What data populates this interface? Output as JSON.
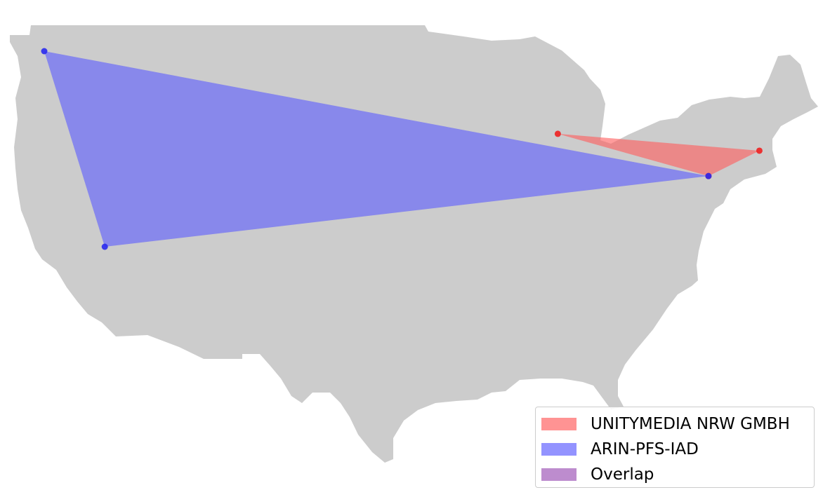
{
  "map": {
    "land_color": "#cccccc",
    "background_color": "#ffffff"
  },
  "regions": [
    {
      "id": "unitymedia",
      "label": "UNITYMEDIA NRW GMBH",
      "fill": "#ff5a5a",
      "point_color": "#ee2020",
      "points": [
        [
          41.88,
          -87.63
        ],
        [
          40.71,
          -74.01
        ],
        [
          38.95,
          -77.45
        ]
      ]
    },
    {
      "id": "arin",
      "label": "ARIN-PFS-IAD",
      "fill": "#5a5aff",
      "point_color": "#2a2aee",
      "points": [
        [
          47.61,
          -122.33
        ],
        [
          34.05,
          -118.24
        ],
        [
          38.95,
          -77.45
        ]
      ]
    }
  ],
  "overlap": {
    "label": "Overlap",
    "fill": "#9a50b4"
  }
}
